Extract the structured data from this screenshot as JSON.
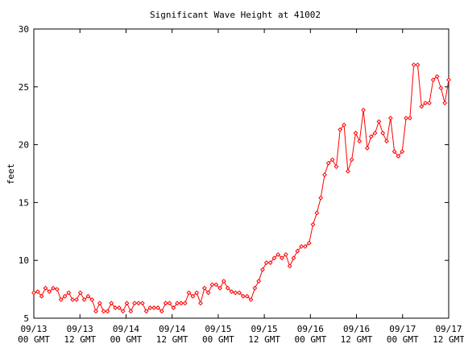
{
  "chart_data": {
    "type": "line",
    "title": "Significant Wave Height at 41002",
    "xlabel": "",
    "ylabel": "feet",
    "ylim": [
      5,
      30
    ],
    "yticks": [
      5,
      10,
      15,
      20,
      25,
      30
    ],
    "xrange_hours": [
      0,
      96
    ],
    "xticks": [
      {
        "hour": 0,
        "date": "09/13",
        "time": "00 GMT"
      },
      {
        "hour": 12,
        "date": "09/13",
        "time": "12 GMT"
      },
      {
        "hour": 24,
        "date": "09/14",
        "time": "00 GMT"
      },
      {
        "hour": 36,
        "date": "09/14",
        "time": "12 GMT"
      },
      {
        "hour": 48,
        "date": "09/15",
        "time": "00 GMT"
      },
      {
        "hour": 60,
        "date": "09/15",
        "time": "12 GMT"
      },
      {
        "hour": 72,
        "date": "09/16",
        "time": "00 GMT"
      },
      {
        "hour": 84,
        "date": "09/16",
        "time": "12 GMT"
      },
      {
        "hour": 96,
        "date": "09/17",
        "time": "00 GMT"
      },
      {
        "hour": 108,
        "date": "09/17",
        "time": "12 GMT"
      }
    ],
    "grid": false,
    "line_color": "#ff0000",
    "marker": "diamond",
    "series": [
      {
        "values": [
          7.2,
          7.3,
          6.9,
          7.6,
          7.3,
          7.6,
          7.5,
          6.6,
          6.9,
          7.2,
          6.6,
          6.6,
          7.2,
          6.6,
          6.9,
          6.6,
          5.6,
          6.3,
          5.6,
          5.6,
          6.3,
          5.9,
          5.9,
          5.6,
          6.3,
          5.6,
          6.3,
          6.3,
          6.3,
          5.6,
          5.9,
          5.9,
          5.9,
          5.6,
          6.3,
          6.3,
          5.9,
          6.3,
          6.3,
          6.3,
          7.2,
          6.9,
          7.2,
          6.3,
          7.6,
          7.2,
          7.9,
          7.9,
          7.6,
          8.2,
          7.6,
          7.3,
          7.2,
          7.2,
          6.9,
          6.9,
          6.6,
          7.6,
          8.2,
          9.2,
          9.8,
          9.8,
          10.2,
          10.5,
          10.2,
          10.5,
          9.5,
          10.2,
          10.8,
          11.2,
          11.2,
          11.5,
          13.1,
          14.1,
          15.4,
          17.4,
          18.4,
          18.7,
          18.1,
          21.3,
          21.7,
          17.7,
          18.7,
          21.0,
          20.3,
          23.0,
          19.7,
          20.7,
          21.0,
          22.0,
          21.0,
          20.3,
          22.3,
          19.4,
          19.0,
          19.4,
          22.3,
          22.3,
          26.9,
          26.9,
          23.3,
          23.6,
          23.6,
          25.6,
          25.9,
          24.9,
          23.6,
          25.6
        ]
      }
    ]
  }
}
